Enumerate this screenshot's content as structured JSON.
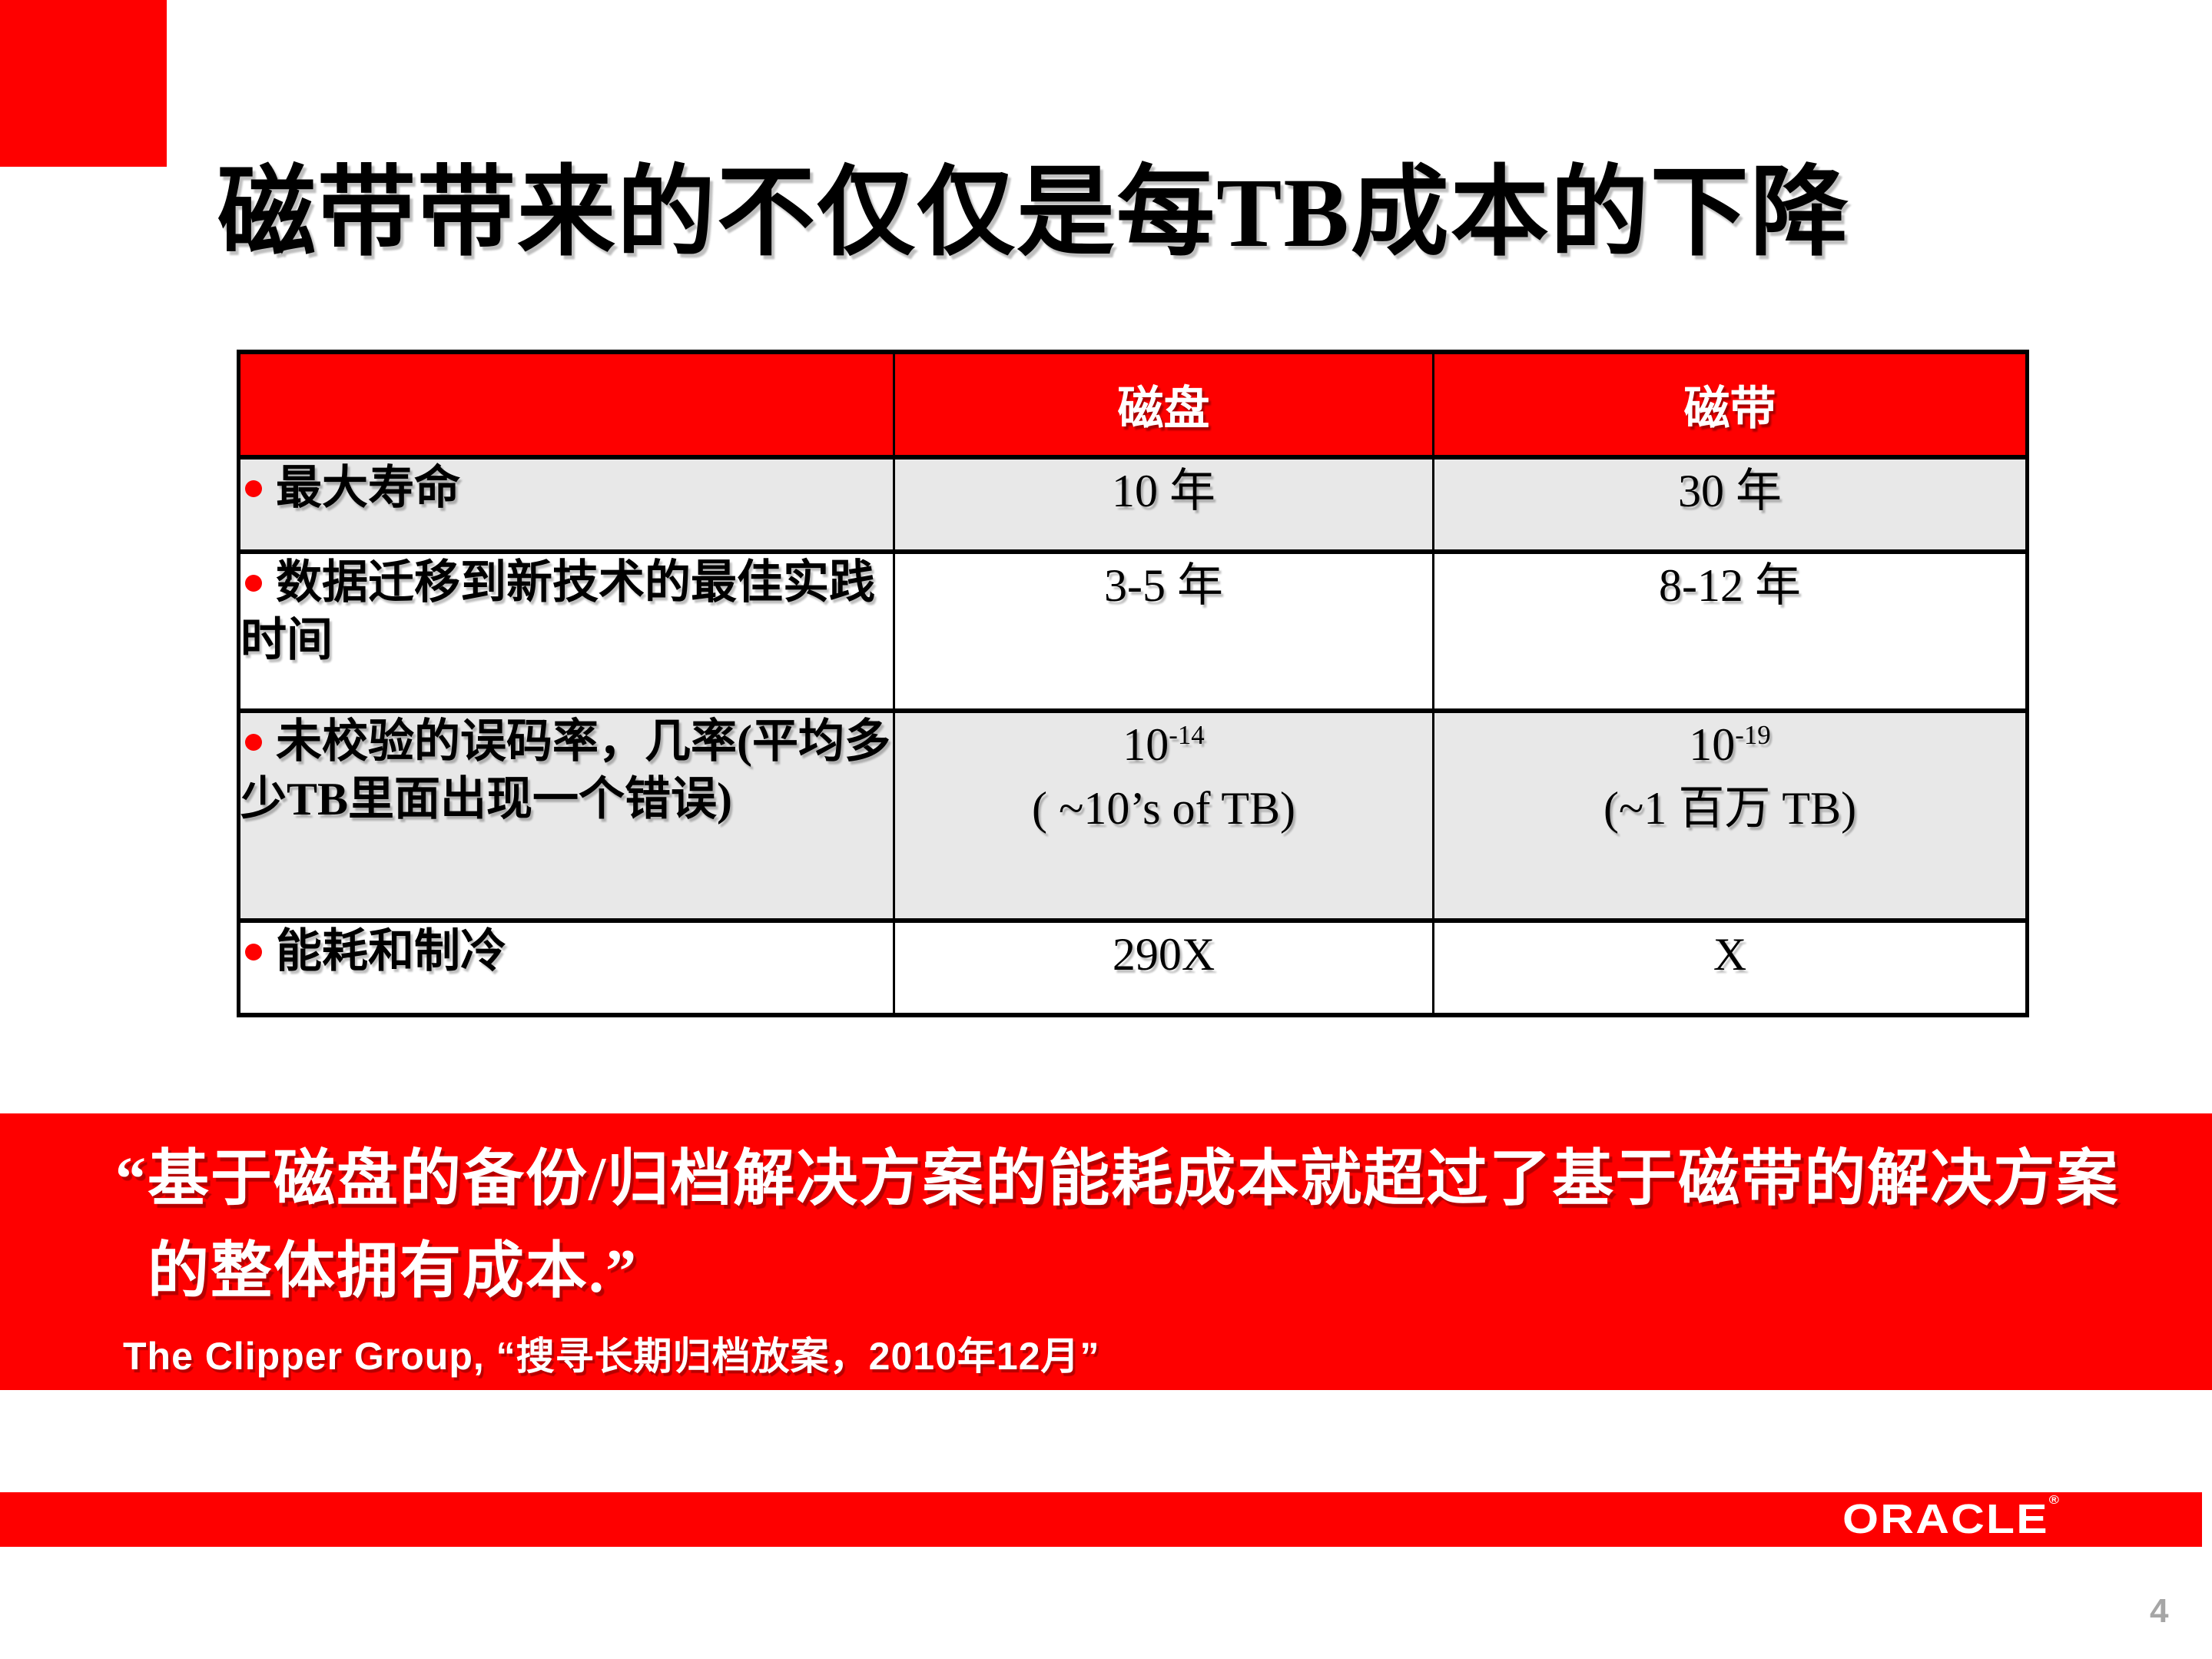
{
  "slide": {
    "title": "磁带带来的不仅仅是每TB成本的下降",
    "page_number": "4"
  },
  "table": {
    "header": {
      "blank": "",
      "disk": "磁盘",
      "tape": "磁带"
    },
    "rows": [
      {
        "label": "最大寿命",
        "disk": {
          "text": "10 年"
        },
        "tape": {
          "text": "30 年"
        }
      },
      {
        "label": "数据迁移到新技术的最佳实践时间",
        "disk": {
          "text": "3-5 年"
        },
        "tape": {
          "text": "8-12 年"
        }
      },
      {
        "label": "未校验的误码率，几率(平均多少TB里面出现一个错误)",
        "disk": {
          "base": "10",
          "exp": "-14",
          "note": "( ~10’s of TB)"
        },
        "tape": {
          "base": "10",
          "exp": "-19",
          "note": "(~1 百万 TB)"
        }
      },
      {
        "label": "能耗和制冷",
        "disk": {
          "text": "290X"
        },
        "tape": {
          "text": "X"
        }
      }
    ]
  },
  "quote": {
    "line1": "“基于磁盘的备份/归档解决方案的能耗成本就超过了基于磁带的解决方案",
    "line2": "的整体拥有成本.”",
    "attribution": "The Clipper Group, “搜寻长期归档放案，2010年12月”"
  },
  "footer": {
    "logo": "ORACLE",
    "registered_mark": "®"
  },
  "colors": {
    "accent_red": "#FE0000",
    "row_gray": "#E8E8E8",
    "page_number_gray": "#A6A6A6"
  }
}
